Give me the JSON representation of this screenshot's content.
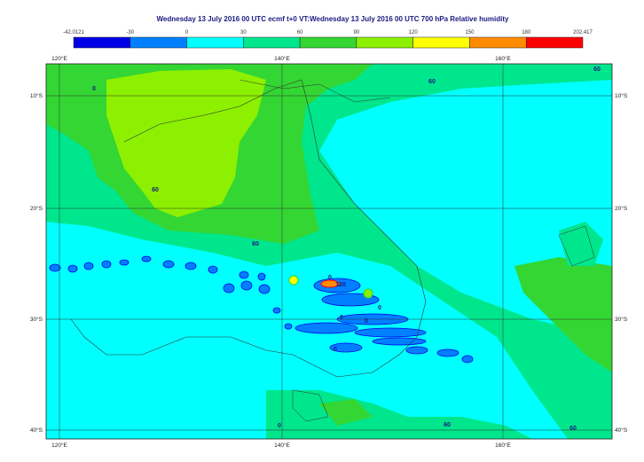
{
  "title": "Wednesday 13 July 2016 00 UTC ecmf t+0 VT:Wednesday 13 July 2016 00 UTC 700 hPa  Relative humidity",
  "colorbar": {
    "labels": [
      "-42.0121",
      "-30",
      "0",
      "30",
      "60",
      "90",
      "120",
      "150",
      "180",
      "202.417"
    ],
    "colors": [
      "#0000e6",
      "#0080ff",
      "#00ffff",
      "#00e68c",
      "#33d633",
      "#8cf000",
      "#ffff00",
      "#ff8c00",
      "#ff0000"
    ]
  },
  "map": {
    "lon_labels": [
      "120°E",
      "140°E",
      "160°E"
    ],
    "lat_labels": [
      "10°S",
      "20°S",
      "30°S",
      "40°S"
    ],
    "contour_labels": [
      "60",
      "60",
      "60",
      "60",
      "60",
      "0",
      "0",
      "120",
      "0",
      "0",
      "0",
      "0",
      "60",
      "0"
    ]
  }
}
